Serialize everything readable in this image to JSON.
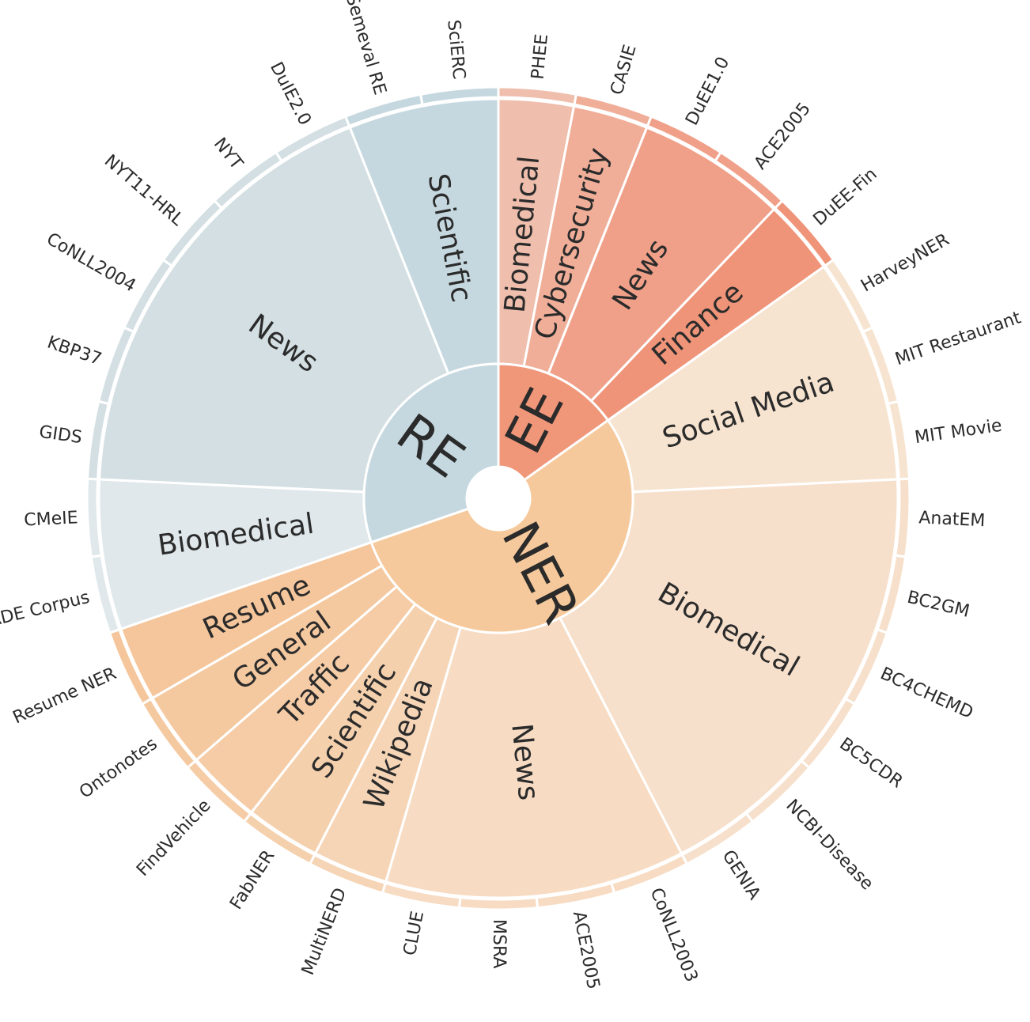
{
  "tasks": [
    {
      "name": "EE",
      "color": "#f09679",
      "domains": [
        {
          "name": "Biomedical",
          "color": "#efbeac",
          "datasets": [
            "PHEE"
          ]
        },
        {
          "name": "Cybersecurity",
          "color": "#f0ae98",
          "datasets": [
            "CASIE"
          ]
        },
        {
          "name": "News",
          "color": "#f0a088",
          "datasets": [
            "DuEE1.0",
            "ACE2005"
          ]
        },
        {
          "name": "Finance",
          "color": "#ef9478",
          "datasets": [
            "DuEE-Fin"
          ]
        }
      ]
    },
    {
      "name": "NER",
      "color": "#f5c99b",
      "domains": [
        {
          "name": "Social Media",
          "color": "#f7e4d0",
          "datasets": [
            "HarveyNER",
            "MIT Restaurant",
            "MIT Movie"
          ]
        },
        {
          "name": "Biomedical",
          "color": "#f7e0cb",
          "datasets": [
            "AnatEM",
            "BC2GM",
            "BC4CHEMD",
            "BC5CDR",
            "NCBI-Disease",
            "GENIA"
          ]
        },
        {
          "name": "News",
          "color": "#f7dcc3",
          "datasets": [
            "CoNLL2003",
            "ACE2005",
            "MSRA",
            "CLUE"
          ]
        },
        {
          "name": "Wikipedia",
          "color": "#f6d5b6",
          "datasets": [
            "MultiNERD"
          ]
        },
        {
          "name": "Scientific",
          "color": "#f5d0ad",
          "datasets": [
            "FabNER"
          ]
        },
        {
          "name": "Traffic",
          "color": "#f5cca6",
          "datasets": [
            "FindVehicle"
          ]
        },
        {
          "name": "General",
          "color": "#f5c9a0",
          "datasets": [
            "Ontonotes"
          ]
        },
        {
          "name": "Resume",
          "color": "#f5c69b",
          "datasets": [
            "Resume NER"
          ]
        }
      ]
    },
    {
      "name": "RE",
      "color": "#c5d8df",
      "domains": [
        {
          "name": "Biomedical",
          "color": "#e0e8eb",
          "datasets": [
            "ADE Corpus",
            "CMeIE"
          ]
        },
        {
          "name": "News",
          "color": "#d3dfe3",
          "datasets": [
            "GIDS",
            "KBP37",
            "CoNLL2004",
            "NYT11-HRL",
            "NYT",
            "DuIE2.0"
          ]
        },
        {
          "name": "Scientific",
          "color": "#c6d8df",
          "datasets": [
            "Semeval RE",
            "SciERC"
          ]
        }
      ]
    }
  ]
}
